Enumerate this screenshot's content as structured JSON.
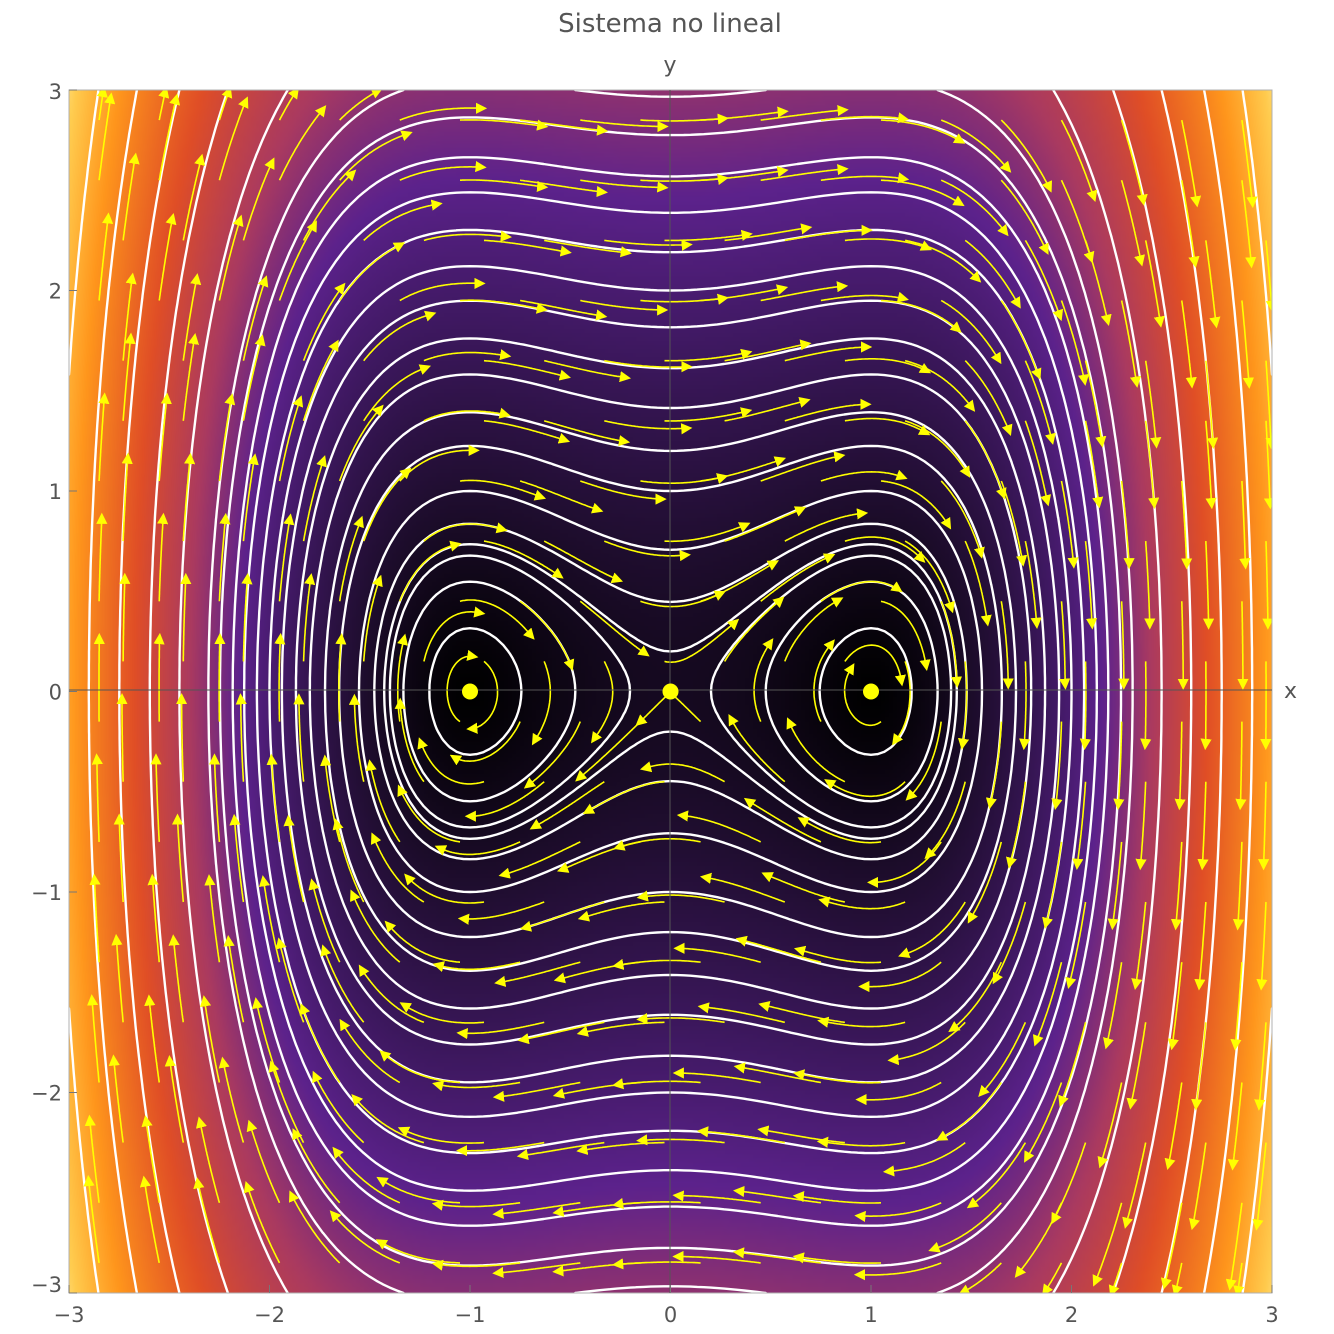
{
  "chart_data": {
    "type": "scatter",
    "title": "Sistema no lineal",
    "xlabel": "x",
    "ylabel": "y",
    "xlim": [
      -3,
      3
    ],
    "ylim": [
      -3,
      3
    ],
    "x_ticks": [
      {
        "value": -3,
        "label": "−3"
      },
      {
        "value": -2,
        "label": "−2"
      },
      {
        "value": -1,
        "label": "−1"
      },
      {
        "value": 0,
        "label": "0"
      },
      {
        "value": 1,
        "label": "1"
      },
      {
        "value": 2,
        "label": "2"
      },
      {
        "value": 3,
        "label": "3"
      }
    ],
    "y_ticks": [
      {
        "value": -3,
        "label": "−3"
      },
      {
        "value": -2,
        "label": "−2"
      },
      {
        "value": -1,
        "label": "−1"
      },
      {
        "value": 0,
        "label": "0"
      },
      {
        "value": 1,
        "label": "1"
      },
      {
        "value": 2,
        "label": "2"
      },
      {
        "value": 3,
        "label": "3"
      }
    ],
    "grid": false,
    "system": {
      "dx": "y",
      "dy": "x - x^3"
    },
    "background": "density of energy E = y^2/2 - x^2/2 + x^4/4, dark near the center, orange and pale yellow at |x| near 3",
    "contour_levels": [
      -0.2,
      -0.1,
      -0.02,
      0.02,
      0.1,
      0.25,
      0.5,
      0.72,
      1.0,
      1.3,
      1.65,
      2.0,
      2.4,
      2.85,
      3.3,
      3.85,
      4.4,
      6.0,
      8.0,
      10.5,
      13.5,
      17.0
    ],
    "equilibria": [
      {
        "x": -1,
        "y": 0
      },
      {
        "x": 0,
        "y": 0
      },
      {
        "x": 1,
        "y": 0
      }
    ],
    "colors": {
      "streamlines": "#ffff00",
      "contours": "#ffffff",
      "equilibria": "#ffff00",
      "background_low": "#000000",
      "background_mid": "#5a2290",
      "background_high": "#ff9e1a"
    }
  }
}
